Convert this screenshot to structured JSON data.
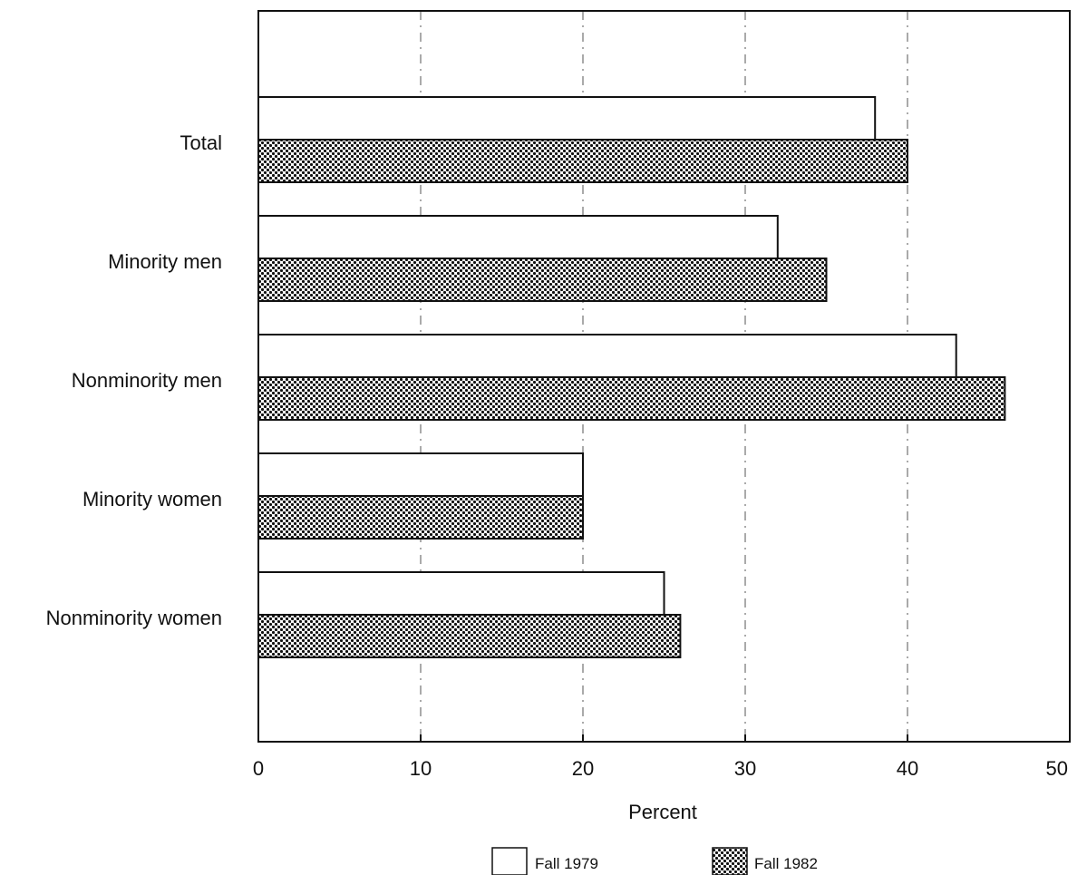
{
  "chart_data": {
    "type": "bar",
    "orientation": "horizontal",
    "categories": [
      "Total",
      "Minority men",
      "Nonminority men",
      "Minority women",
      "Nonminority women"
    ],
    "series": [
      {
        "name": "Fall 1979",
        "values": [
          38,
          32,
          43,
          20,
          25
        ],
        "fill": "#ffffff"
      },
      {
        "name": "Fall 1982",
        "values": [
          40,
          35,
          46,
          20,
          26
        ],
        "fill": "dotted"
      }
    ],
    "xlabel": "Percent",
    "xlim": [
      0,
      50
    ],
    "xticks": [
      0,
      10,
      20,
      30,
      40,
      50
    ],
    "grid": "vertical dash-dot",
    "legend_position": "bottom"
  }
}
